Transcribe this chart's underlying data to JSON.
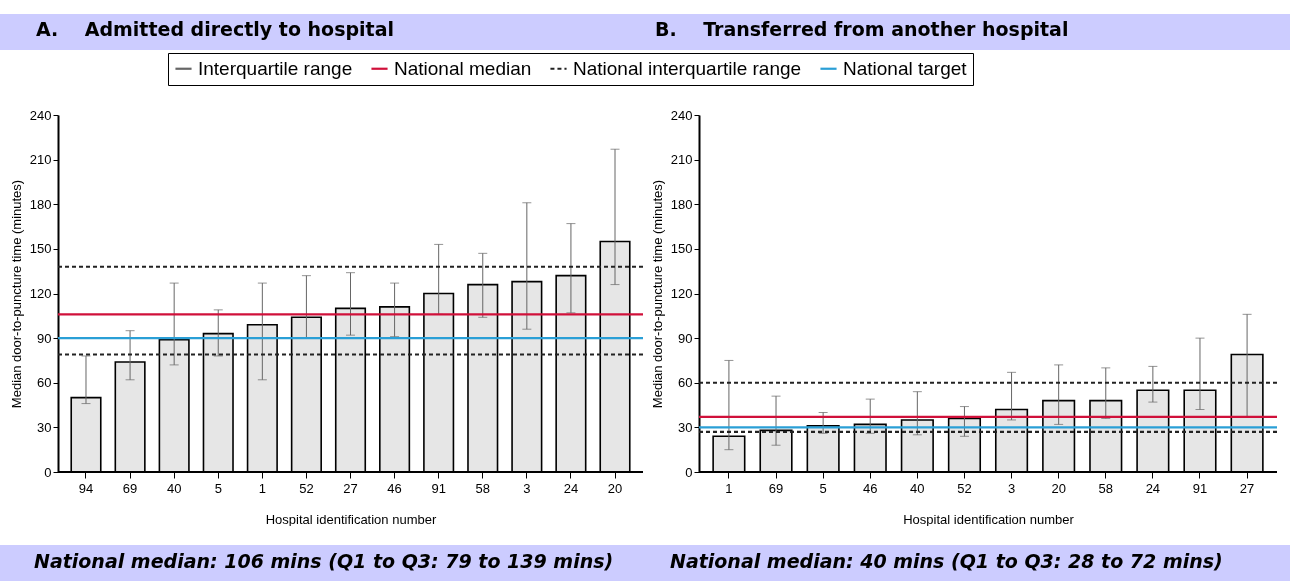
{
  "chart_data": [
    {
      "type": "bar",
      "title": "A.    Admitted directly to hospital",
      "xlabel": "Hospital identification number",
      "ylabel": "Median door-to-puncture time (minutes)",
      "legend": "top",
      "categories": [
        "94",
        "69",
        "40",
        "5",
        "1",
        "52",
        "27",
        "46",
        "91",
        "58",
        "3",
        "24",
        "20"
      ],
      "series": [
        {
          "color": "#e6e6e6",
          "values": [
            50,
            74,
            89,
            93,
            99,
            104,
            110,
            111,
            120,
            126,
            128,
            132,
            155
          ],
          "errors": [
            [
              46,
              78
            ],
            [
              62,
              95
            ],
            [
              72,
              127
            ],
            [
              78,
              109
            ],
            [
              62,
              127
            ],
            [
              90,
              132
            ],
            [
              92,
              134
            ],
            [
              91,
              127
            ],
            [
              106,
              153
            ],
            [
              104,
              147
            ],
            [
              96,
              181
            ],
            [
              107,
              167
            ],
            [
              126,
              217
            ]
          ]
        }
      ],
      "ylim": [
        0,
        240
      ],
      "yticks": [
        0,
        30,
        60,
        90,
        120,
        150,
        180,
        210,
        240
      ],
      "ref_lines": [
        {
          "axis": "y",
          "value": 106,
          "label": "National median",
          "color": "#d0103a",
          "line_style": "solid"
        },
        {
          "axis": "y",
          "value": 79,
          "label": "National interquartile range",
          "color": "#222222",
          "line_style": "dashed"
        },
        {
          "axis": "y",
          "value": 138,
          "color": "#222222",
          "line_style": "dashed"
        },
        {
          "axis": "y",
          "value": 90,
          "label": "National target",
          "color": "#2a9fd6",
          "line_style": "solid"
        }
      ],
      "annotations": [
        "Interquartile range",
        "National median: 106 mins (Q1 to Q3: 79 to 139 mins)"
      ]
    },
    {
      "type": "bar",
      "title": "B.    Transferred from another hospital",
      "xlabel": "Hospital identification number",
      "ylabel": "Median door-to-puncture time (minutes)",
      "categories": [
        "1",
        "69",
        "5",
        "46",
        "40",
        "52",
        "3",
        "20",
        "58",
        "24",
        "91",
        "27"
      ],
      "series": [
        {
          "color": "#e6e6e6",
          "values": [
            24,
            28,
            31,
            32,
            35,
            36,
            42,
            48,
            48,
            55,
            55,
            79
          ],
          "errors": [
            [
              15,
              75
            ],
            [
              18,
              51
            ],
            [
              26,
              40
            ],
            [
              26,
              49
            ],
            [
              25,
              54
            ],
            [
              24,
              44
            ],
            [
              35,
              67
            ],
            [
              32,
              72
            ],
            [
              36,
              70
            ],
            [
              47,
              71
            ],
            [
              42,
              90
            ],
            [
              37,
              106
            ]
          ]
        }
      ],
      "ylim": [
        0,
        240
      ],
      "yticks": [
        0,
        30,
        60,
        90,
        120,
        150,
        180,
        210,
        240
      ],
      "ref_lines": [
        {
          "axis": "y",
          "value": 37,
          "color": "#d0103a",
          "line_style": "solid"
        },
        {
          "axis": "y",
          "value": 27,
          "color": "#222222",
          "line_style": "dashed"
        },
        {
          "axis": "y",
          "value": 60,
          "color": "#222222",
          "line_style": "dashed"
        },
        {
          "axis": "y",
          "value": 30,
          "color": "#2a9fd6",
          "line_style": "solid"
        }
      ],
      "annotations": [
        "National median: 40 mins (Q1 to Q3: 28 to 72 mins)"
      ]
    }
  ]
}
